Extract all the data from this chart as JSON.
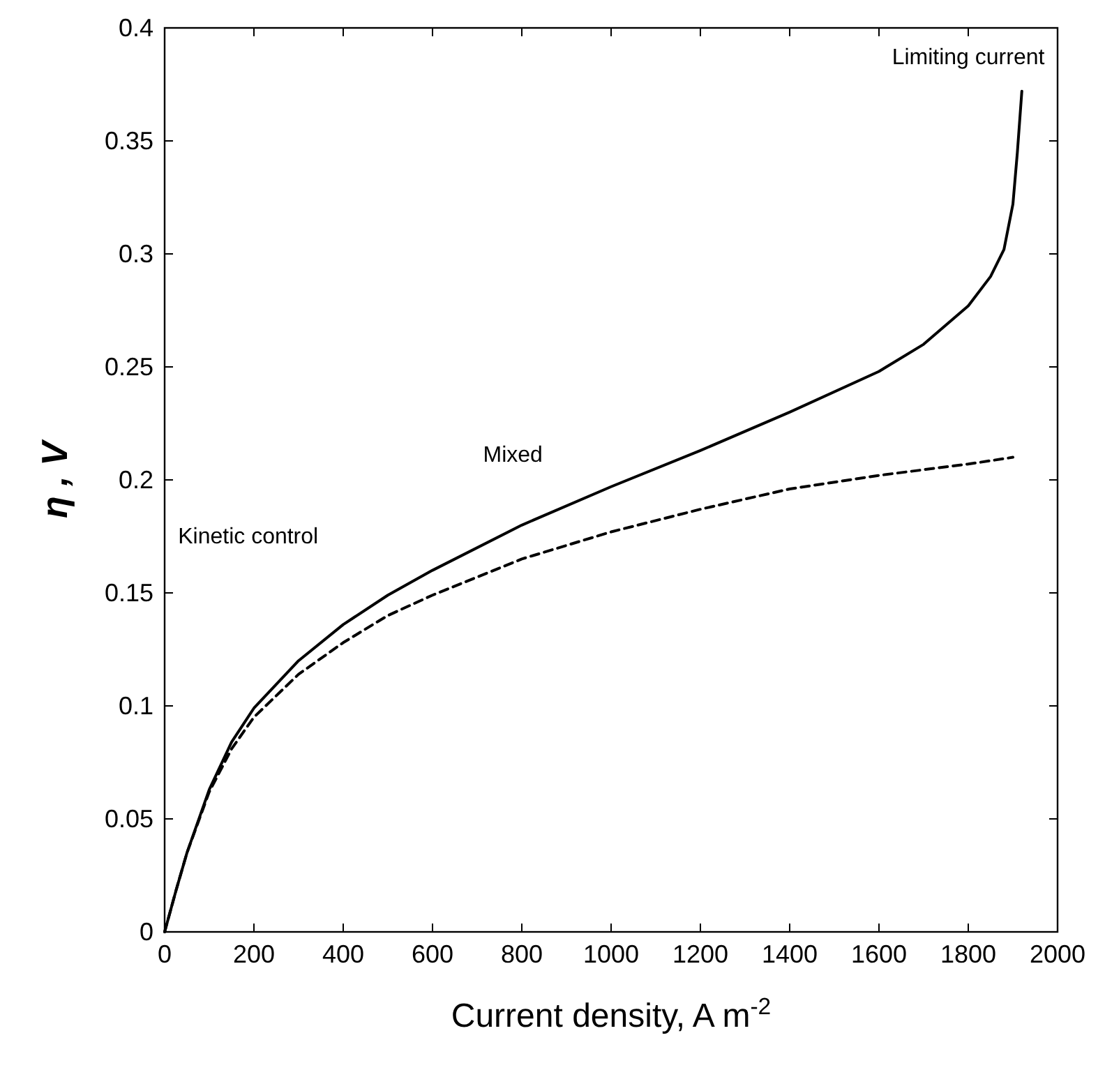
{
  "chart_data": {
    "type": "line",
    "xlabel": "Current density, A m$^{-2}$",
    "ylabel": "η , V",
    "xlim": [
      0,
      2000
    ],
    "ylim": [
      0,
      0.4
    ],
    "xticks": [
      0,
      200,
      400,
      600,
      800,
      1000,
      1200,
      1400,
      1600,
      1800,
      2000
    ],
    "yticks": [
      0,
      0.05,
      0.1,
      0.15,
      0.2,
      0.25,
      0.3,
      0.35,
      0.4
    ],
    "grid": false,
    "marker": "none",
    "series": [
      {
        "color": "#000000",
        "line_style": "solid",
        "x": [
          0,
          25,
          50,
          100,
          150,
          200,
          300,
          400,
          500,
          600,
          800,
          1000,
          1200,
          1400,
          1600,
          1700,
          1800,
          1850,
          1880,
          1900,
          1910,
          1920
        ],
        "values": [
          0,
          0.018,
          0.035,
          0.063,
          0.084,
          0.099,
          0.12,
          0.136,
          0.149,
          0.16,
          0.18,
          0.197,
          0.213,
          0.23,
          0.248,
          0.26,
          0.277,
          0.29,
          0.302,
          0.322,
          0.345,
          0.372
        ]
      },
      {
        "color": "#000000",
        "line_style": "dashed",
        "x": [
          0,
          25,
          50,
          100,
          150,
          200,
          300,
          400,
          500,
          600,
          800,
          1000,
          1200,
          1400,
          1600,
          1800,
          1900
        ],
        "values": [
          0,
          0.018,
          0.035,
          0.062,
          0.081,
          0.095,
          0.114,
          0.128,
          0.14,
          0.149,
          0.165,
          0.177,
          0.187,
          0.196,
          0.202,
          0.207,
          0.21
        ]
      }
    ],
    "annotations": [
      "Kinetic control",
      "Mixed",
      "Limiting current"
    ]
  }
}
